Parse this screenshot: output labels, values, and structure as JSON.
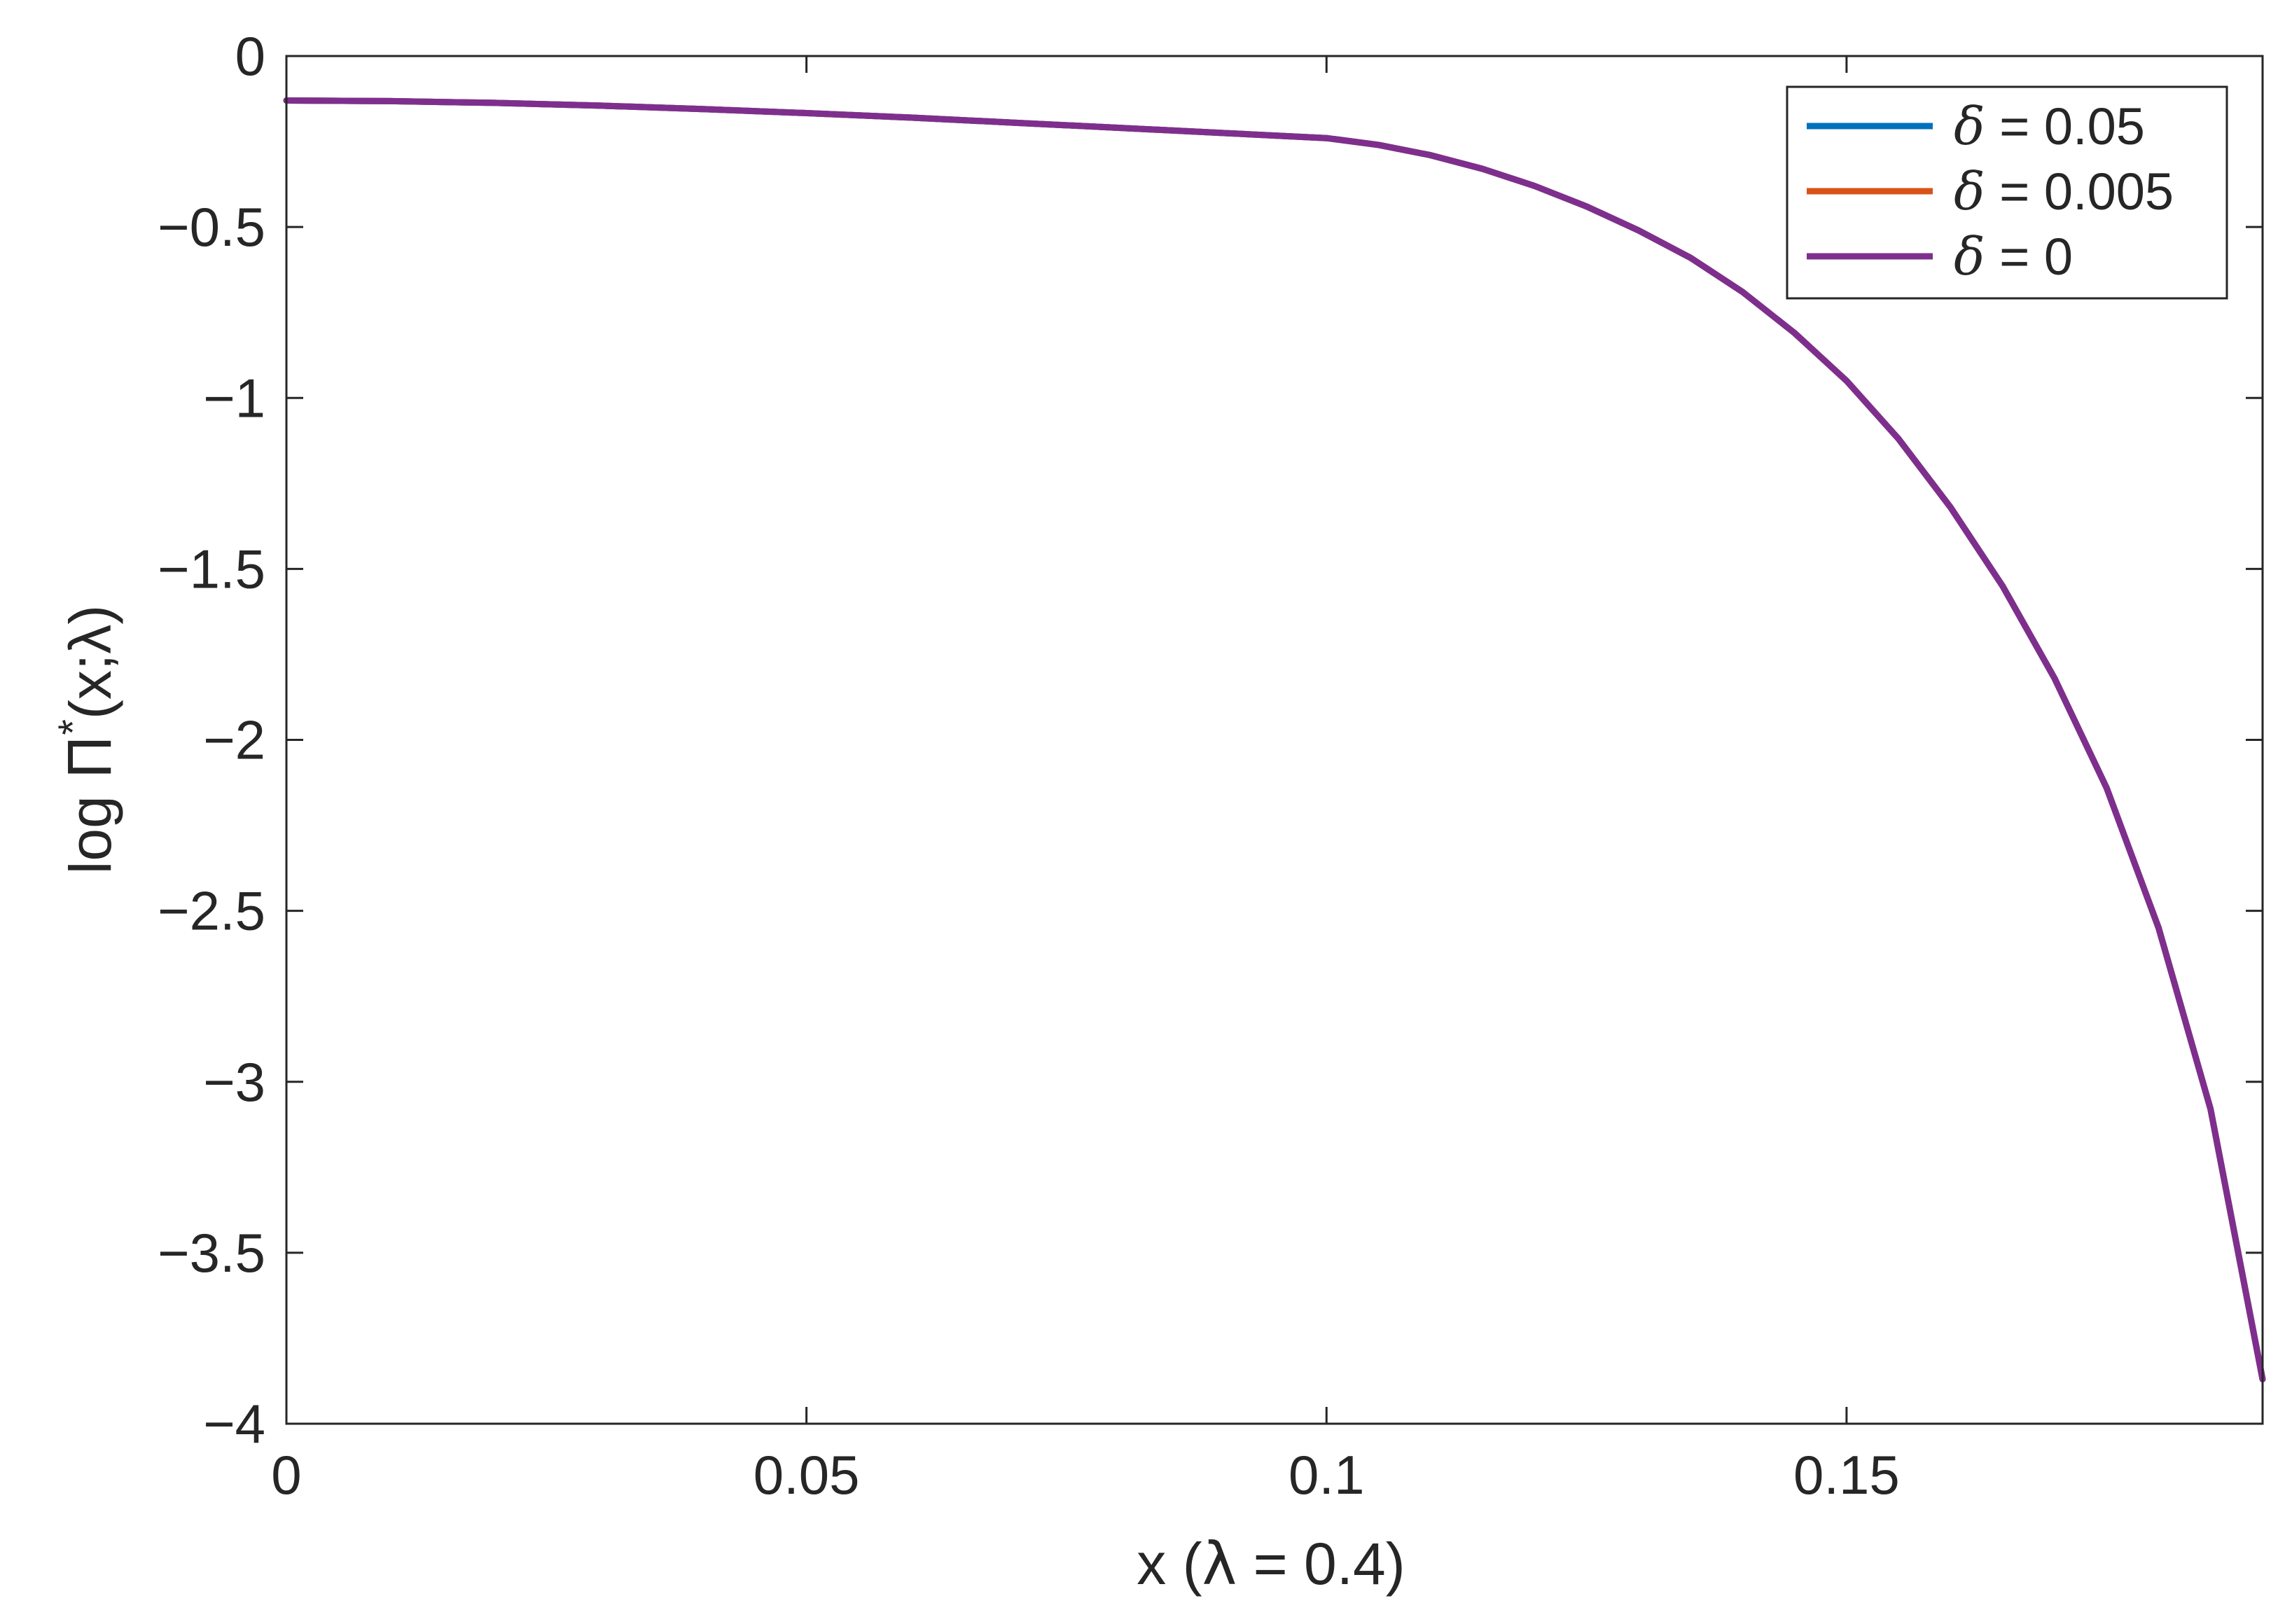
{
  "chart_data": {
    "type": "line",
    "title": "",
    "xlabel": {
      "prefix": "x (",
      "symbol": "λ",
      "suffix": " = 0.4)"
    },
    "ylabel": {
      "prefix": "log ",
      "symbol": "Π",
      "superscript": "*",
      "suffix": "(x;λ)"
    },
    "xlim": [
      0,
      0.19
    ],
    "ylim": [
      -4,
      0
    ],
    "xticks": [
      0,
      0.05,
      0.1,
      0.15
    ],
    "xtick_labels": [
      "0",
      "0.05",
      "0.1",
      "0.15"
    ],
    "yticks": [
      0,
      -0.5,
      -1,
      -1.5,
      -2,
      -2.5,
      -3,
      -3.5,
      -4
    ],
    "ytick_labels": [
      "0",
      "−0.5",
      "−1",
      "−1.5",
      "−2",
      "−2.5",
      "−3",
      "−3.5",
      "−4"
    ],
    "grid": false,
    "box": true,
    "legend": {
      "position": "top-right"
    },
    "series": [
      {
        "symbol": "δ",
        "value_label": " = 0.05",
        "color": "#0072BD",
        "x": [
          0,
          0.01,
          0.02,
          0.03,
          0.04,
          0.05,
          0.06,
          0.07,
          0.08,
          0.09,
          0.1,
          0.105,
          0.11,
          0.115,
          0.12,
          0.125,
          0.13,
          0.135,
          0.14,
          0.145,
          0.15,
          0.155,
          0.16,
          0.165,
          0.17,
          0.175,
          0.18,
          0.185,
          0.19
        ],
        "y": [
          -0.13,
          -0.132,
          -0.137,
          -0.145,
          -0.155,
          -0.167,
          -0.18,
          -0.195,
          -0.21,
          -0.225,
          -0.24,
          -0.26,
          -0.29,
          -0.33,
          -0.38,
          -0.44,
          -0.51,
          -0.59,
          -0.69,
          -0.81,
          -0.95,
          -1.12,
          -1.32,
          -1.55,
          -1.82,
          -2.14,
          -2.55,
          -3.08,
          -3.87
        ]
      },
      {
        "symbol": "δ",
        "value_label": " = 0.005",
        "color": "#D95319",
        "x": [
          0,
          0.01,
          0.02,
          0.03,
          0.04,
          0.05,
          0.06,
          0.07,
          0.08,
          0.09,
          0.1,
          0.105,
          0.11,
          0.115,
          0.12,
          0.125,
          0.13,
          0.135,
          0.14,
          0.145,
          0.15,
          0.155,
          0.16,
          0.165,
          0.17,
          0.175,
          0.18,
          0.185,
          0.19
        ],
        "y": [
          -0.13,
          -0.132,
          -0.137,
          -0.145,
          -0.155,
          -0.167,
          -0.18,
          -0.195,
          -0.21,
          -0.225,
          -0.24,
          -0.26,
          -0.29,
          -0.33,
          -0.38,
          -0.44,
          -0.51,
          -0.59,
          -0.69,
          -0.81,
          -0.95,
          -1.12,
          -1.32,
          -1.55,
          -1.82,
          -2.14,
          -2.55,
          -3.08,
          -3.87
        ]
      },
      {
        "symbol": "δ",
        "value_label": " = 0",
        "color": "#7E2F8E",
        "x": [
          0,
          0.01,
          0.02,
          0.03,
          0.04,
          0.05,
          0.06,
          0.07,
          0.08,
          0.09,
          0.1,
          0.105,
          0.11,
          0.115,
          0.12,
          0.125,
          0.13,
          0.135,
          0.14,
          0.145,
          0.15,
          0.155,
          0.16,
          0.165,
          0.17,
          0.175,
          0.18,
          0.185,
          0.19
        ],
        "y": [
          -0.13,
          -0.132,
          -0.137,
          -0.145,
          -0.155,
          -0.167,
          -0.18,
          -0.195,
          -0.21,
          -0.225,
          -0.24,
          -0.26,
          -0.29,
          -0.33,
          -0.38,
          -0.44,
          -0.51,
          -0.59,
          -0.69,
          -0.81,
          -0.95,
          -1.12,
          -1.32,
          -1.55,
          -1.82,
          -2.14,
          -2.55,
          -3.08,
          -3.87
        ]
      }
    ]
  }
}
